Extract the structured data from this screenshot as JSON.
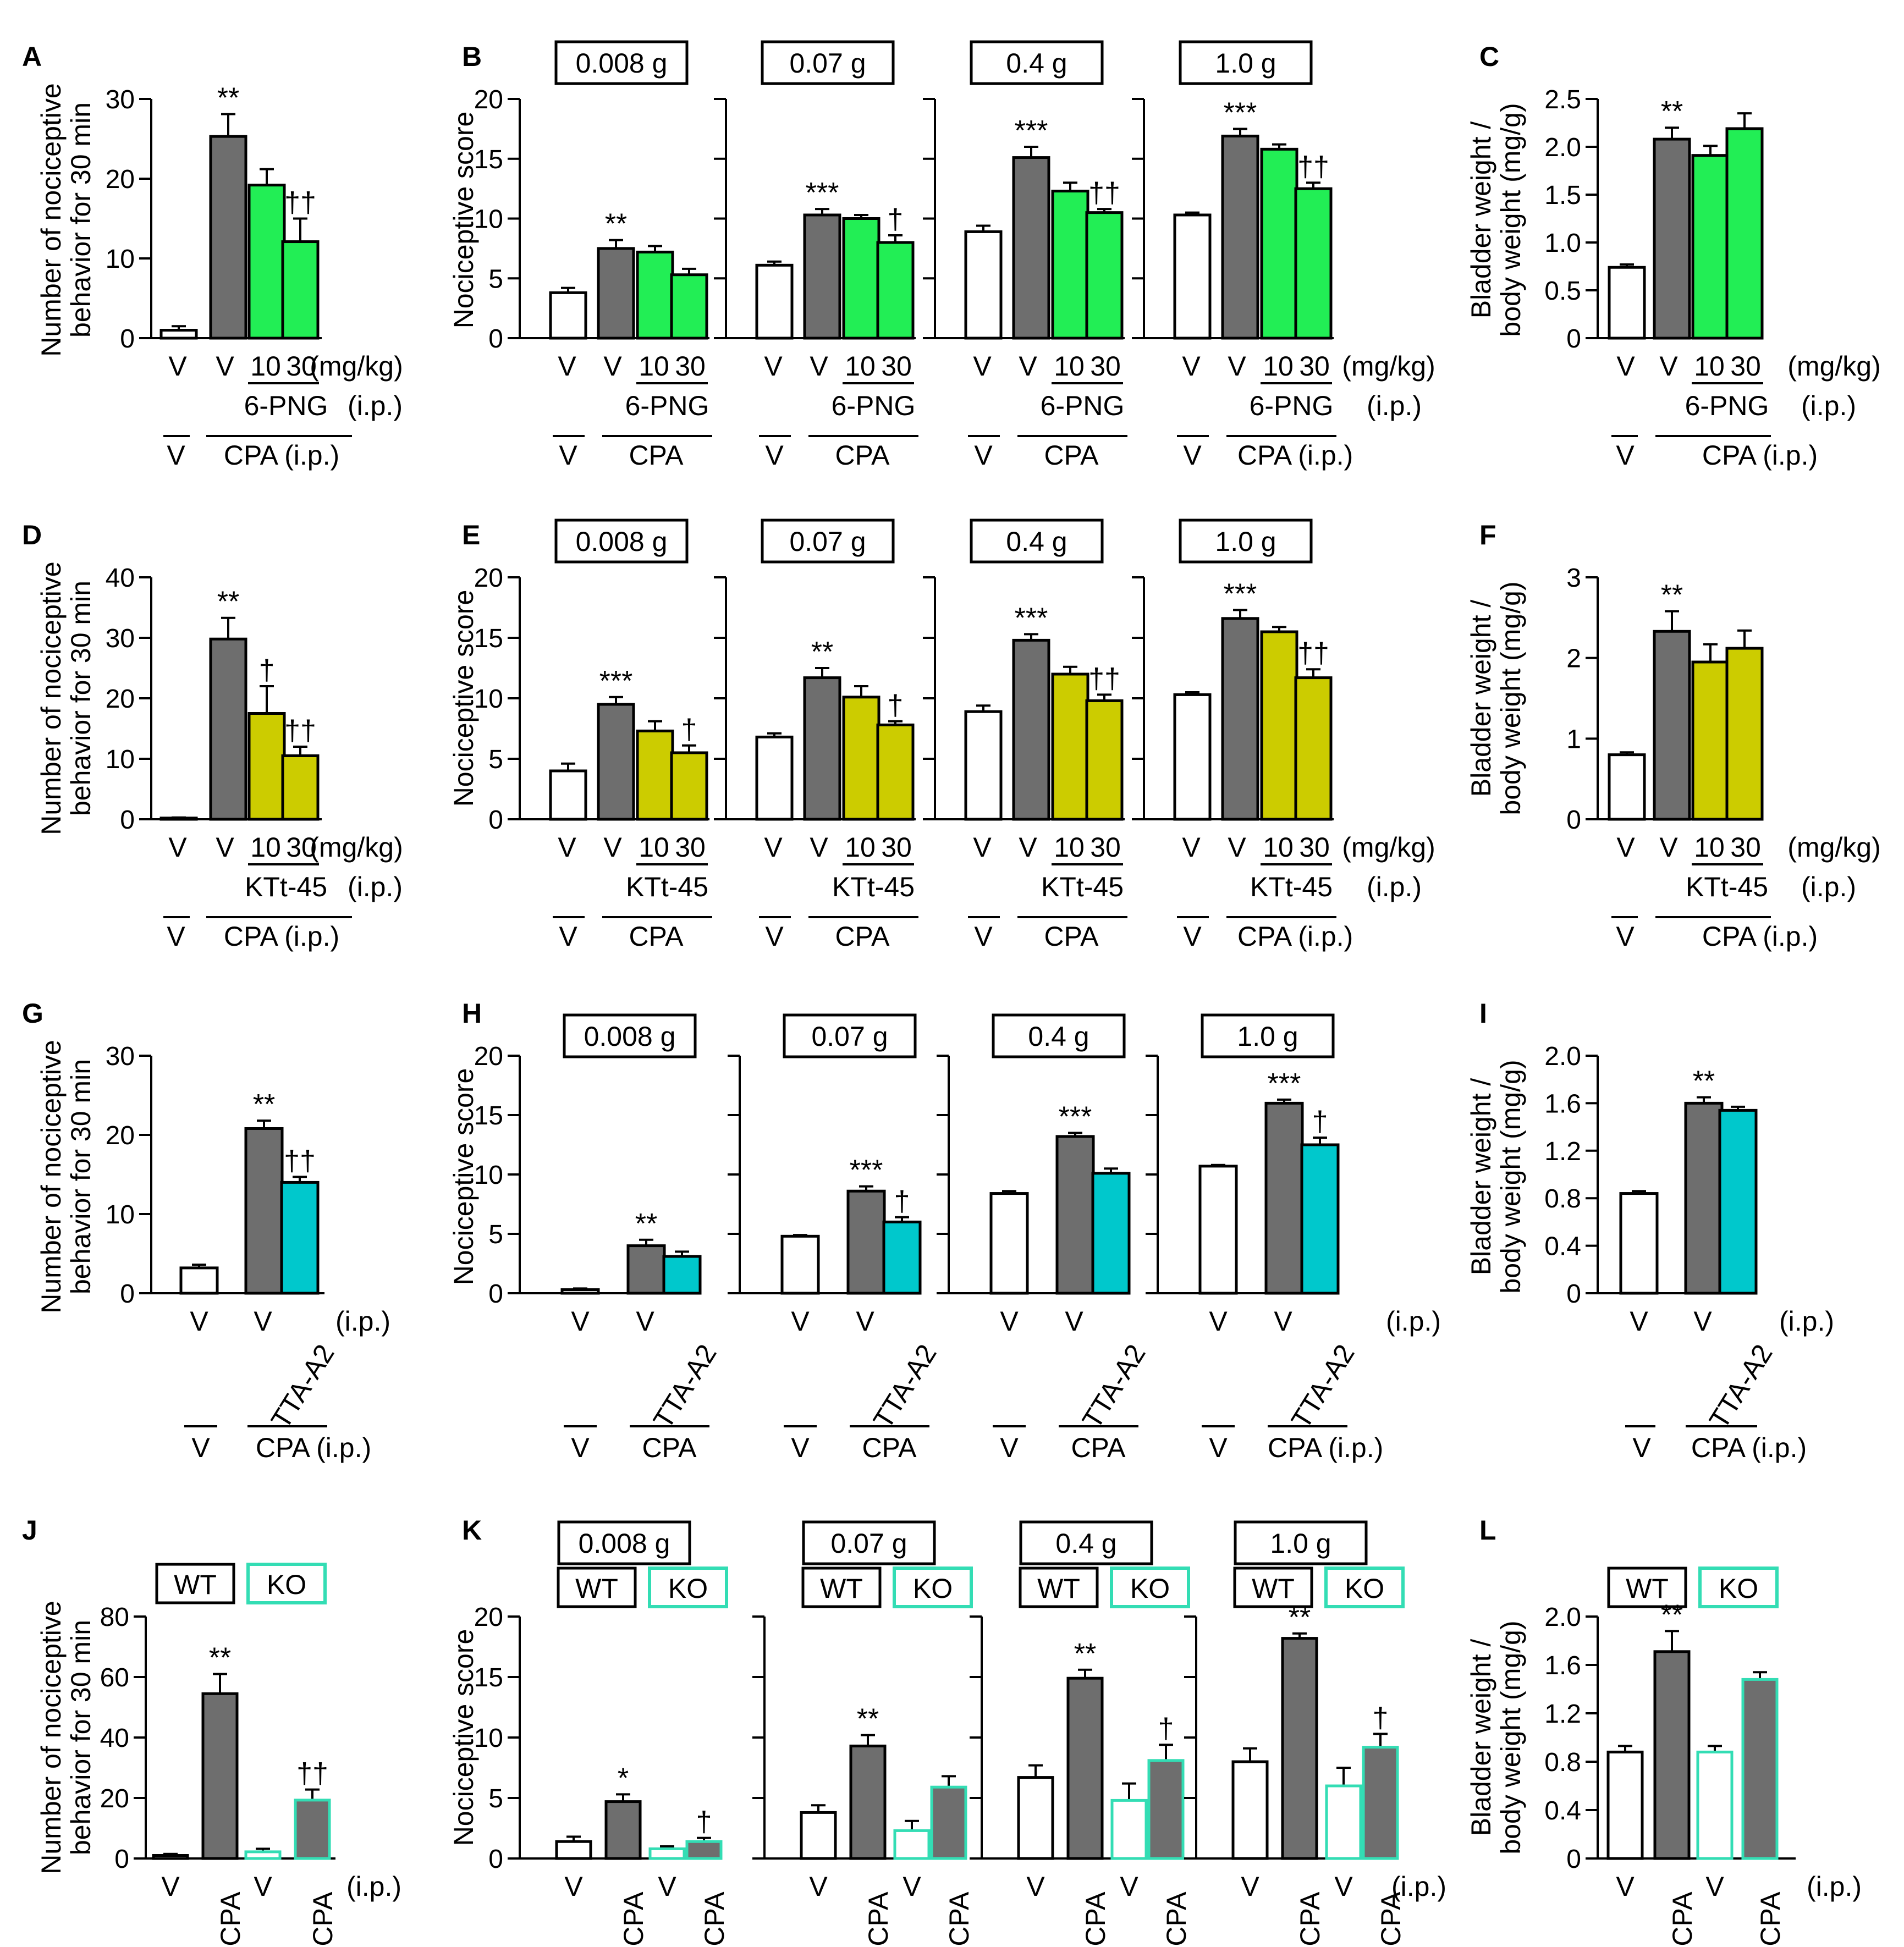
{
  "colors": {
    "gray": "#6e6e6e",
    "green": "#22ee55",
    "yellow": "#cccc00",
    "cyan": "#00c8cc",
    "koEdge": "#33ddb4",
    "white": "#ffffff",
    "black": "#000000"
  },
  "common": {
    "y_nociceptive_score": "Nociceptive score",
    "y_behavior": [
      "Number of nociceptive",
      "behavior for 30 min"
    ],
    "y_bladder": [
      "Bladder weight /",
      "body weight (mg/g)"
    ],
    "dose_unit": "(mg/kg)",
    "route": "(i.p.)",
    "vehicle": "V",
    "cpa": "CPA",
    "cpa_ip": "CPA (i.p.)",
    "wt": "WT",
    "ko": "KO",
    "filament_weights": [
      "0.008 g",
      "0.07 g",
      "0.4 g",
      "1.0 g"
    ]
  },
  "chart_data": [
    {
      "panel": "A",
      "type": "bar",
      "ylabel": "Number of nociceptive behavior for 30 min",
      "ylim": [
        0,
        30
      ],
      "yticks": [
        0,
        10,
        20,
        30
      ],
      "categories": [
        "V",
        "V",
        "10",
        "30"
      ],
      "values": [
        1,
        25.3,
        19.2,
        12.1
      ],
      "errors": [
        0.5,
        2.8,
        2.0,
        2.9
      ],
      "colors": [
        "white",
        "gray",
        "green",
        "green"
      ],
      "annotations": [
        "",
        "**",
        "",
        "††"
      ],
      "drug": "6-PNG",
      "dose_unit": "(mg/kg)",
      "route": "(i.p.)",
      "groups": [
        "V",
        "CPA (i.p.)"
      ]
    },
    {
      "panel": "B",
      "type": "bar",
      "ylabel": "Nociceptive score",
      "ylim": [
        0,
        20
      ],
      "yticks": [
        0,
        5,
        10,
        15,
        20
      ],
      "filaments": [
        "0.008 g",
        "0.07 g",
        "0.4 g",
        "1.0 g"
      ],
      "categories": [
        "V",
        "V",
        "10",
        "30"
      ],
      "series": [
        {
          "name": "0.008 g",
          "values": [
            3.8,
            7.5,
            7.2,
            5.3
          ],
          "errors": [
            0.4,
            0.7,
            0.5,
            0.5
          ],
          "annotations": [
            "",
            "**",
            "",
            ""
          ]
        },
        {
          "name": "0.07 g",
          "values": [
            6.1,
            10.3,
            10.0,
            8.0
          ],
          "errors": [
            0.3,
            0.5,
            0.3,
            0.6
          ],
          "annotations": [
            "",
            "***",
            "",
            "†"
          ]
        },
        {
          "name": "0.4 g",
          "values": [
            8.9,
            15.1,
            12.3,
            10.5
          ],
          "errors": [
            0.5,
            0.9,
            0.7,
            0.3
          ],
          "annotations": [
            "",
            "***",
            "",
            "††"
          ]
        },
        {
          "name": "1.0 g",
          "values": [
            10.3,
            16.9,
            15.8,
            12.5
          ],
          "errors": [
            0.2,
            0.6,
            0.4,
            0.5
          ],
          "annotations": [
            "",
            "***",
            "",
            "††"
          ]
        }
      ],
      "colors": [
        "white",
        "gray",
        "green",
        "green"
      ],
      "drug": "6-PNG",
      "dose_unit": "(mg/kg)",
      "route": "(i.p.)",
      "groups": [
        "V",
        "CPA",
        "CPA (i.p.)"
      ]
    },
    {
      "panel": "C",
      "type": "bar",
      "ylabel": "Bladder weight / body weight (mg/g)",
      "ylim": [
        0,
        2.5
      ],
      "yticks": [
        "0",
        "0.5",
        "1.0",
        "1.5",
        "2.0",
        "2.5"
      ],
      "categories": [
        "V",
        "V",
        "10",
        "30"
      ],
      "values": [
        0.74,
        2.08,
        1.91,
        2.19
      ],
      "errors": [
        0.03,
        0.12,
        0.1,
        0.16
      ],
      "colors": [
        "white",
        "gray",
        "green",
        "green"
      ],
      "annotations": [
        "",
        "**",
        "",
        ""
      ],
      "drug": "6-PNG",
      "dose_unit": "(mg/kg)",
      "route": "(i.p.)",
      "groups": [
        "V",
        "CPA (i.p.)"
      ]
    },
    {
      "panel": "D",
      "type": "bar",
      "ylabel": "Number of nociceptive behavior for 30 min",
      "ylim": [
        0,
        40
      ],
      "yticks": [
        0,
        10,
        20,
        30,
        40
      ],
      "categories": [
        "V",
        "V",
        "10",
        "30"
      ],
      "values": [
        0.2,
        29.8,
        17.5,
        10.5
      ],
      "errors": [
        0.1,
        3.5,
        4.5,
        1.5
      ],
      "colors": [
        "white",
        "gray",
        "yellow",
        "yellow"
      ],
      "annotations": [
        "",
        "**",
        "†",
        "††"
      ],
      "drug": "KTt-45",
      "dose_unit": "(mg/kg)",
      "route": "(i.p.)",
      "groups": [
        "V",
        "CPA (i.p.)"
      ]
    },
    {
      "panel": "E",
      "type": "bar",
      "ylabel": "Nociceptive score",
      "ylim": [
        0,
        20
      ],
      "yticks": [
        0,
        5,
        10,
        15,
        20
      ],
      "filaments": [
        "0.008 g",
        "0.07 g",
        "0.4 g",
        "1.0 g"
      ],
      "categories": [
        "V",
        "V",
        "10",
        "30"
      ],
      "series": [
        {
          "name": "0.008 g",
          "values": [
            4.0,
            9.5,
            7.3,
            5.5
          ],
          "errors": [
            0.6,
            0.6,
            0.8,
            0.6
          ],
          "annotations": [
            "",
            "***",
            "",
            "†"
          ]
        },
        {
          "name": "0.07 g",
          "values": [
            6.8,
            11.7,
            10.1,
            7.8
          ],
          "errors": [
            0.3,
            0.8,
            0.9,
            0.3
          ],
          "annotations": [
            "",
            "**",
            "",
            "†"
          ]
        },
        {
          "name": "0.4 g",
          "values": [
            8.9,
            14.8,
            12.0,
            9.8
          ],
          "errors": [
            0.5,
            0.5,
            0.6,
            0.5
          ],
          "annotations": [
            "",
            "***",
            "",
            "††"
          ]
        },
        {
          "name": "1.0 g",
          "values": [
            10.3,
            16.6,
            15.5,
            11.7
          ],
          "errors": [
            0.2,
            0.7,
            0.4,
            0.7
          ],
          "annotations": [
            "",
            "***",
            "",
            "††"
          ]
        }
      ],
      "colors": [
        "white",
        "gray",
        "yellow",
        "yellow"
      ],
      "drug": "KTt-45",
      "dose_unit": "(mg/kg)",
      "route": "(i.p.)",
      "groups": [
        "V",
        "CPA",
        "CPA (i.p.)"
      ]
    },
    {
      "panel": "F",
      "type": "bar",
      "ylabel": "Bladder weight / body weight (mg/g)",
      "ylim": [
        0,
        3
      ],
      "yticks": [
        0,
        1,
        2,
        3
      ],
      "categories": [
        "V",
        "V",
        "10",
        "30"
      ],
      "values": [
        0.8,
        2.33,
        1.95,
        2.12
      ],
      "errors": [
        0.03,
        0.25,
        0.22,
        0.22
      ],
      "colors": [
        "white",
        "gray",
        "yellow",
        "yellow"
      ],
      "annotations": [
        "",
        "**",
        "",
        ""
      ],
      "drug": "KTt-45",
      "dose_unit": "(mg/kg)",
      "route": "(i.p.)",
      "groups": [
        "V",
        "CPA (i.p.)"
      ]
    },
    {
      "panel": "G",
      "type": "bar",
      "ylabel": "Number of nociceptive behavior for 30 min",
      "ylim": [
        0,
        30
      ],
      "yticks": [
        0,
        10,
        20,
        30
      ],
      "categories": [
        "V",
        "V",
        "TTA-A2"
      ],
      "values": [
        3.2,
        20.8,
        14.0
      ],
      "errors": [
        0.4,
        1.0,
        0.7
      ],
      "colors": [
        "white",
        "gray",
        "cyan"
      ],
      "annotations": [
        "",
        "**",
        "††"
      ],
      "route": "(i.p.)",
      "groups": [
        "V",
        "CPA (i.p.)"
      ]
    },
    {
      "panel": "H",
      "type": "bar",
      "ylabel": "Nociceptive score",
      "ylim": [
        0,
        20
      ],
      "yticks": [
        0,
        5,
        10,
        15,
        20
      ],
      "filaments": [
        "0.008 g",
        "0.07 g",
        "0.4 g",
        "1.0 g"
      ],
      "categories": [
        "V",
        "V",
        "TTA-A2"
      ],
      "series": [
        {
          "name": "0.008 g",
          "values": [
            0.3,
            4.0,
            3.1
          ],
          "errors": [
            0.1,
            0.5,
            0.4
          ],
          "annotations": [
            "",
            "**",
            ""
          ]
        },
        {
          "name": "0.07 g",
          "values": [
            4.8,
            8.6,
            6.0
          ],
          "errors": [
            0.1,
            0.4,
            0.4
          ],
          "annotations": [
            "",
            "***",
            "†"
          ]
        },
        {
          "name": "0.4 g",
          "values": [
            8.4,
            13.2,
            10.1
          ],
          "errors": [
            0.2,
            0.3,
            0.4
          ],
          "annotations": [
            "",
            "***",
            ""
          ]
        },
        {
          "name": "1.0 g",
          "values": [
            10.7,
            16.0,
            12.5
          ],
          "errors": [
            0.1,
            0.3,
            0.6
          ],
          "annotations": [
            "",
            "***",
            "†"
          ]
        }
      ],
      "colors": [
        "white",
        "gray",
        "cyan"
      ],
      "route": "(i.p.)",
      "groups": [
        "V",
        "CPA",
        "CPA (i.p.)"
      ]
    },
    {
      "panel": "I",
      "type": "bar",
      "ylabel": "Bladder weight / body weight (mg/g)",
      "ylim": [
        0,
        2.0
      ],
      "yticks": [
        "0",
        "0.4",
        "0.8",
        "1.2",
        "1.6",
        "2.0"
      ],
      "categories": [
        "V",
        "V",
        "TTA-A2"
      ],
      "values": [
        0.84,
        1.6,
        1.54
      ],
      "errors": [
        0.02,
        0.05,
        0.03
      ],
      "colors": [
        "white",
        "gray",
        "cyan"
      ],
      "annotations": [
        "",
        "**",
        ""
      ],
      "route": "(i.p.)",
      "groups": [
        "V",
        "CPA (i.p.)"
      ]
    },
    {
      "panel": "J",
      "type": "bar",
      "ylabel": "Number of nociceptive behavior for 30 min",
      "ylim": [
        0,
        80
      ],
      "yticks": [
        0,
        20,
        40,
        60,
        80
      ],
      "categories": [
        "V",
        "CPA",
        "V",
        "CPA"
      ],
      "values": [
        1.0,
        54.5,
        2.2,
        19.3
      ],
      "errors": [
        0.5,
        6.5,
        1.0,
        3.5
      ],
      "colors": [
        "white",
        "gray",
        "white-ko",
        "gray-ko"
      ],
      "annotations": [
        "",
        "**",
        "",
        "††"
      ],
      "legend": [
        "WT",
        "KO"
      ],
      "route": "(i.p.)"
    },
    {
      "panel": "K",
      "type": "bar",
      "ylabel": "Nociceptive score",
      "ylim": [
        0,
        20
      ],
      "yticks": [
        0,
        5,
        10,
        15,
        20
      ],
      "filaments": [
        "0.008 g",
        "0.07 g",
        "0.4 g",
        "1.0 g"
      ],
      "categories": [
        "V",
        "CPA",
        "V",
        "CPA"
      ],
      "series": [
        {
          "name": "0.008 g",
          "values": [
            1.4,
            4.7,
            0.8,
            1.4
          ],
          "errors": [
            0.4,
            0.6,
            0.2,
            0.3
          ],
          "annotations": [
            "",
            "*",
            "",
            "†"
          ]
        },
        {
          "name": "0.07 g",
          "values": [
            3.8,
            9.3,
            2.3,
            5.9
          ],
          "errors": [
            0.6,
            0.9,
            0.8,
            0.9
          ],
          "annotations": [
            "",
            "**",
            "",
            ""
          ]
        },
        {
          "name": "0.4 g",
          "values": [
            6.7,
            14.9,
            4.8,
            8.1
          ],
          "errors": [
            1.0,
            0.7,
            1.4,
            1.3
          ],
          "annotations": [
            "",
            "**",
            "",
            "†"
          ]
        },
        {
          "name": "1.0 g",
          "values": [
            8.0,
            18.2,
            6.0,
            9.2
          ],
          "errors": [
            1.1,
            0.4,
            1.5,
            1.1
          ],
          "annotations": [
            "",
            "**",
            "",
            "†"
          ]
        }
      ],
      "colors": [
        "white",
        "gray",
        "white-ko",
        "gray-ko"
      ],
      "legend": [
        "WT",
        "KO"
      ],
      "route": "(i.p.)"
    },
    {
      "panel": "L",
      "type": "bar",
      "ylabel": "Bladder weight / body weight (mg/g)",
      "ylim": [
        0,
        2.0
      ],
      "yticks": [
        "0",
        "0.4",
        "0.8",
        "1.2",
        "1.6",
        "2.0"
      ],
      "categories": [
        "V",
        "CPA",
        "V",
        "CPA"
      ],
      "values": [
        0.88,
        1.71,
        0.88,
        1.48
      ],
      "errors": [
        0.05,
        0.17,
        0.05,
        0.06
      ],
      "colors": [
        "white",
        "gray",
        "white-ko",
        "gray-ko"
      ],
      "annotations": [
        "",
        "**",
        "",
        ""
      ],
      "legend": [
        "WT",
        "KO"
      ],
      "route": "(i.p.)"
    }
  ]
}
